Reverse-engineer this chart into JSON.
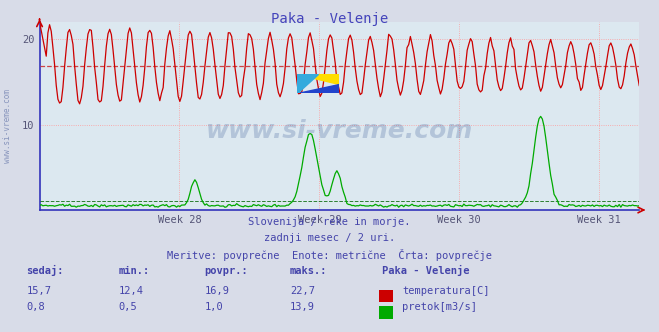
{
  "title": "Paka - Velenje",
  "title_color": "#4444bb",
  "bg_color": "#d8dce8",
  "plot_bg_color": "#dce8f0",
  "grid_color": "#ff9999",
  "axis_color": "#3333bb",
  "x_tick_labels": [
    "Week 28",
    "Week 29",
    "Week 30",
    "Week 31"
  ],
  "ylabel": "",
  "ylim": [
    0,
    22
  ],
  "yticks": [
    10,
    20
  ],
  "temp_color": "#cc0000",
  "flow_color": "#00aa00",
  "avg_temp_color": "#cc3333",
  "avg_flow_color": "#006600",
  "avg_temp": 16.9,
  "avg_flow": 1.0,
  "temp_min": 12.4,
  "temp_max": 22.7,
  "flow_min": 0.5,
  "flow_max": 13.9,
  "temp_current": 15.7,
  "flow_current": 0.8,
  "footer_line1": "Slovenija / reke in morje.",
  "footer_line2": "zadnji mesec / 2 uri.",
  "footer_line3": "Meritve: povprečne  Enote: metrične  Črta: povprečje",
  "footer_color": "#4444aa",
  "table_header_color": "#4444aa",
  "watermark": "www.si-vreme.com",
  "num_points": 360,
  "left_label": "www.si-vreme.com"
}
